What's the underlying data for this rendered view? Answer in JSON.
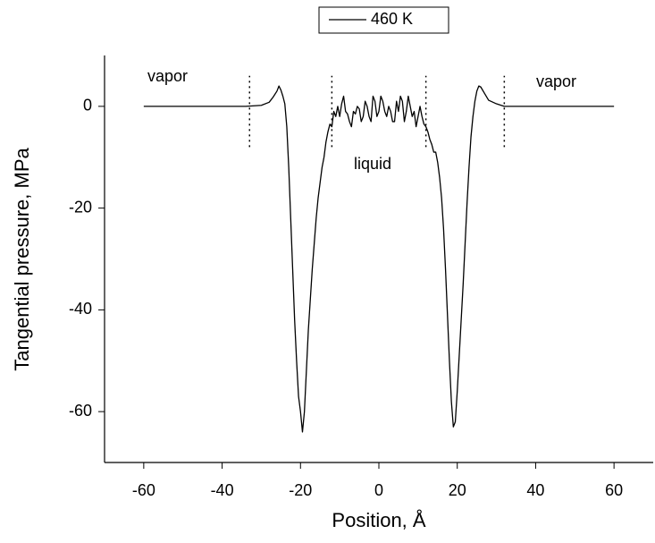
{
  "chart_data": {
    "type": "line",
    "xlabel": "Position, Å",
    "ylabel": "Tangential pressure, MPa",
    "x": [
      -60,
      -50,
      -40,
      -34,
      -30,
      -28,
      -27,
      -26,
      -25.5,
      -25,
      -24.5,
      -24,
      -23.5,
      -23,
      -22.5,
      -22,
      -21.5,
      -21,
      -20.5,
      -20,
      -19.5,
      -19,
      -18.5,
      -18,
      -17.5,
      -17,
      -16.5,
      -16,
      -15.5,
      -15,
      -14.5,
      -14,
      -13.5,
      -13,
      -12.5,
      -12,
      -11.5,
      -11,
      -10.5,
      -10,
      -9.5,
      -9,
      -8.5,
      -8,
      -7.5,
      -7,
      -6.5,
      -6,
      -5.5,
      -5,
      -4.5,
      -4,
      -3.5,
      -3,
      -2.5,
      -2,
      -1.5,
      -1,
      -0.5,
      0,
      0.5,
      1,
      1.5,
      2,
      2.5,
      3,
      3.5,
      4,
      4.5,
      5,
      5.5,
      6,
      6.5,
      7,
      7.5,
      8,
      8.5,
      9,
      9.5,
      10,
      10.5,
      11,
      11.5,
      12,
      12.5,
      13,
      13.5,
      14,
      14.5,
      15,
      15.5,
      16,
      16.5,
      17,
      17.5,
      18,
      18.5,
      19,
      19.5,
      20,
      20.5,
      21,
      21.5,
      22,
      22.5,
      23,
      23.5,
      24,
      24.5,
      25,
      25.5,
      26,
      27,
      28,
      30,
      32,
      34,
      40,
      50,
      60
    ],
    "series": [
      {
        "name": "460 K",
        "color": "#000000",
        "values": [
          0,
          0,
          0,
          0,
          0.2,
          0.8,
          1.8,
          3,
          4,
          3.2,
          2,
          0.5,
          -4,
          -12,
          -22,
          -32,
          -42,
          -50,
          -57,
          -60,
          -64,
          -60,
          -52,
          -44,
          -38,
          -32,
          -27,
          -22,
          -18,
          -15,
          -12,
          -10,
          -7,
          -5,
          -3.5,
          -4,
          -1,
          -2,
          0,
          -2,
          0.5,
          2,
          -1,
          -1.5,
          -3,
          -4,
          -1,
          -1.5,
          0,
          -0.5,
          -3,
          -2,
          1,
          0,
          -2,
          -3,
          2,
          1,
          -2,
          -1,
          2,
          1,
          -1,
          -2,
          0,
          -1,
          -3,
          -3,
          1,
          -1,
          2,
          1,
          -3,
          -1,
          2,
          0,
          -2,
          -1,
          -4,
          -2,
          0,
          -2,
          -3.5,
          -4,
          -5,
          -6.5,
          -7.5,
          -9,
          -9,
          -11,
          -14,
          -18,
          -24,
          -32,
          -41,
          -50,
          -58,
          -63,
          -62,
          -56,
          -49,
          -42,
          -35,
          -27,
          -19,
          -12,
          -6,
          -2,
          1,
          3,
          4,
          3.8,
          2.5,
          1.2,
          0.5,
          0,
          0,
          0,
          0,
          0
        ]
      }
    ],
    "xlim": [
      -70,
      70
    ],
    "xticks": [
      -60,
      -40,
      -20,
      0,
      20,
      40,
      60
    ],
    "ylim": [
      -70,
      10
    ],
    "yticks": [
      -60,
      -40,
      -20,
      0
    ],
    "vlines": [
      -33,
      -12,
      12,
      32
    ],
    "vline_ylim": [
      -8,
      6
    ],
    "annotations": [
      "vapor",
      "liquid",
      "vapor"
    ],
    "legend": "top"
  }
}
